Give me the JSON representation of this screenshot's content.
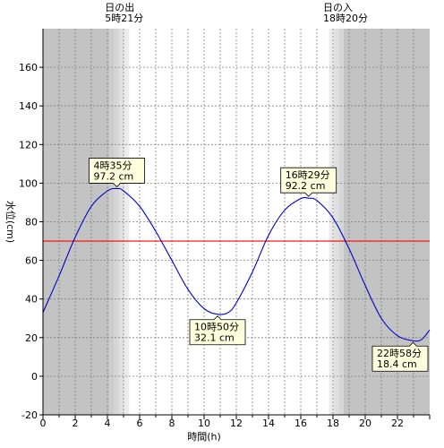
{
  "chart_data": {
    "type": "line",
    "xlabel": "時間(h)",
    "ylabel": "水位(cm)",
    "xlim": [
      0,
      24
    ],
    "ylim": [
      -20,
      180
    ],
    "xticks": [
      0,
      2,
      4,
      6,
      8,
      10,
      12,
      14,
      16,
      18,
      20,
      22
    ],
    "yticks": [
      -20,
      0,
      20,
      40,
      60,
      80,
      100,
      120,
      140,
      160
    ],
    "grid": true,
    "sun": {
      "sunrise_label": "日の出",
      "sunrise_time": "5時21分",
      "sunrise_hour": 5.35,
      "sunset_label": "日の入",
      "sunset_time": "18時20分",
      "sunset_hour": 18.333
    },
    "reference_line": {
      "value": 70,
      "color": "#ff0000"
    },
    "series": [
      {
        "color": "#0000cc",
        "x": [
          0,
          1,
          2,
          3,
          4,
          4.583,
          5,
          6,
          7,
          8,
          9,
          10,
          10.833,
          11.5,
          12,
          13,
          14,
          15,
          16,
          16.483,
          17,
          18,
          19,
          20,
          21,
          22,
          22.967,
          23.5,
          24
        ],
        "y": [
          33,
          52,
          72,
          88,
          96,
          97.2,
          96,
          88,
          75,
          60,
          45,
          35,
          32.1,
          33,
          38,
          54,
          73,
          86,
          92,
          92.2,
          91,
          82,
          66,
          47,
          30,
          21,
          18.4,
          19,
          24
        ]
      }
    ],
    "annotations": [
      {
        "time": "4時35分",
        "value": "97.2 cm",
        "x": 4.583,
        "y": 97.2,
        "position": "above"
      },
      {
        "time": "10時50分",
        "value": "32.1 cm",
        "x": 10.833,
        "y": 32.1,
        "position": "below"
      },
      {
        "time": "16時29分",
        "value": "92.2 cm",
        "x": 16.483,
        "y": 92.2,
        "position": "above"
      },
      {
        "time": "22時58分",
        "value": "18.4 cm",
        "x": 22.967,
        "y": 18.4,
        "position": "below"
      }
    ]
  }
}
